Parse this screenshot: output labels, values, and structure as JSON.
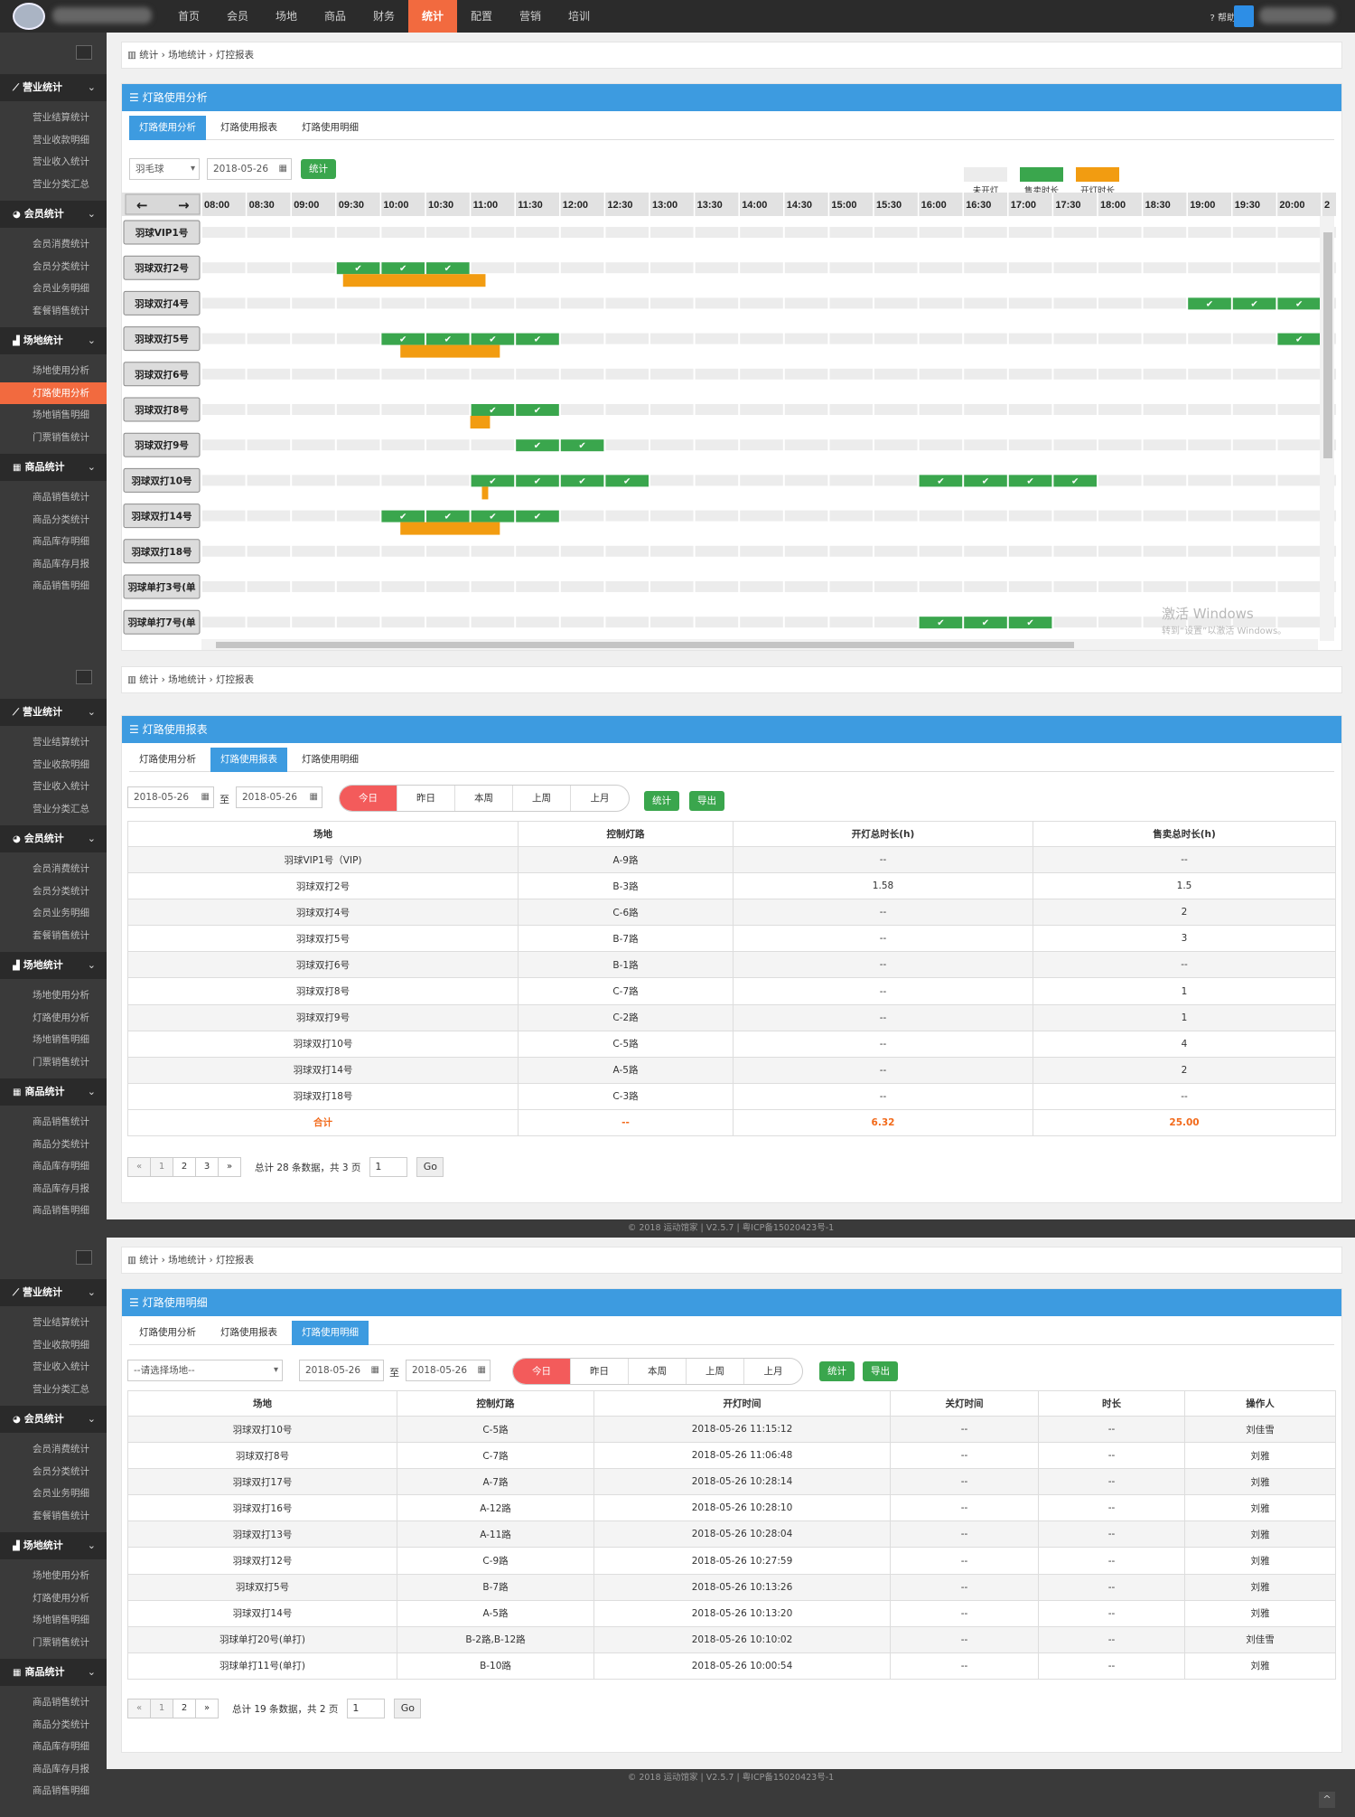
{
  "topnav": {
    "items": [
      "首页",
      "会员",
      "场地",
      "商品",
      "财务",
      "统计",
      "配置",
      "营销",
      "培训"
    ],
    "active": "统计",
    "help": "帮助"
  },
  "sidebar": {
    "groups": [
      {
        "title": "营业统计",
        "items": [
          "营业结算统计",
          "营业收款明细",
          "营业收入统计",
          "营业分类汇总"
        ]
      },
      {
        "title": "会员统计",
        "items": [
          "会员消费统计",
          "会员分类统计",
          "会员业务明细",
          "套餐销售统计"
        ]
      },
      {
        "title": "场地统计",
        "items": [
          "场地使用分析",
          "灯路使用分析",
          "场地销售明细",
          "门票销售统计"
        ]
      },
      {
        "title": "商品统计",
        "items": [
          "商品销售统计",
          "商品分类统计",
          "商品库存明细",
          "商品库存月报",
          "商品销售明细"
        ]
      }
    ]
  },
  "breadcrumb": {
    "root": "统计",
    "mid": "场地统计",
    "leaf": "灯控报表"
  },
  "tabs": [
    "灯路使用分析",
    "灯路使用报表",
    "灯路使用明细"
  ],
  "analysis": {
    "title": "灯路使用分析",
    "sport": "羽毛球",
    "date": "2018-05-26",
    "stat_button": "统计",
    "legend": [
      {
        "label": "未开灯",
        "color": "#ececec"
      },
      {
        "label": "售卖时长",
        "color": "#3aa64d"
      },
      {
        "label": "开灯时长",
        "color": "#f29c11"
      }
    ],
    "times": [
      "08:00",
      "08:30",
      "09:00",
      "09:30",
      "10:00",
      "10:30",
      "11:00",
      "11:30",
      "12:00",
      "12:30",
      "13:00",
      "13:30",
      "14:00",
      "14:30",
      "15:00",
      "15:30",
      "16:00",
      "16:30",
      "17:00",
      "17:30",
      "18:00",
      "18:30",
      "19:00",
      "19:30",
      "20:00",
      "2"
    ],
    "courts": [
      {
        "name": "羽球VIP1号",
        "sold": [],
        "lit": []
      },
      {
        "name": "羽球双打2号",
        "sold": [
          3,
          4,
          5
        ],
        "lit": [
          [
            9.58,
            11.17
          ]
        ]
      },
      {
        "name": "羽球双打4号",
        "sold": [
          22,
          23,
          24
        ],
        "lit": []
      },
      {
        "name": "羽球双打5号",
        "sold": [
          4,
          5,
          6,
          7,
          24
        ],
        "lit": [
          [
            10.22,
            11.33
          ]
        ]
      },
      {
        "name": "羽球双打6号",
        "sold": [],
        "lit": []
      },
      {
        "name": "羽球双打8号",
        "sold": [
          6,
          7
        ],
        "lit": [
          [
            11.0,
            11.22
          ]
        ]
      },
      {
        "name": "羽球双打9号",
        "sold": [
          7,
          8
        ],
        "lit": []
      },
      {
        "name": "羽球双打10号",
        "sold": [
          6,
          7,
          8,
          9,
          16,
          17,
          18,
          19
        ],
        "lit": [
          [
            11.13,
            11.2
          ]
        ]
      },
      {
        "name": "羽球双打14号",
        "sold": [
          4,
          5,
          6,
          7
        ],
        "lit": [
          [
            10.22,
            11.33
          ]
        ]
      },
      {
        "name": "羽球双打18号",
        "sold": [],
        "lit": []
      },
      {
        "name": "羽球单打3号(单",
        "sold": [],
        "lit": []
      },
      {
        "name": "羽球单打7号(单",
        "sold": [
          16,
          17,
          18
        ],
        "lit": []
      }
    ]
  },
  "report": {
    "title": "灯路使用报表",
    "date_from": "2018-05-26",
    "to": "至",
    "date_to": "2018-05-26",
    "ranges": [
      "今日",
      "昨日",
      "本周",
      "上周",
      "上月"
    ],
    "stat_button": "统计",
    "export_button": "导出",
    "columns": [
      "场地",
      "控制灯路",
      "开灯总时长(h)",
      "售卖总时长(h)"
    ],
    "rows": [
      [
        "羽球VIP1号（VIP)",
        "A-9路",
        "--",
        "--"
      ],
      [
        "羽球双打2号",
        "B-3路",
        "1.58",
        "1.5"
      ],
      [
        "羽球双打4号",
        "C-6路",
        "--",
        "2"
      ],
      [
        "羽球双打5号",
        "B-7路",
        "--",
        "3"
      ],
      [
        "羽球双打6号",
        "B-1路",
        "--",
        "--"
      ],
      [
        "羽球双打8号",
        "C-7路",
        "--",
        "1"
      ],
      [
        "羽球双打9号",
        "C-2路",
        "--",
        "1"
      ],
      [
        "羽球双打10号",
        "C-5路",
        "--",
        "4"
      ],
      [
        "羽球双打14号",
        "A-5路",
        "--",
        "2"
      ],
      [
        "羽球双打18号",
        "C-3路",
        "--",
        "--"
      ]
    ],
    "total": [
      "合计",
      "--",
      "6.32",
      "25.00"
    ],
    "pager": {
      "prev": "«",
      "pages": [
        "1",
        "2",
        "3"
      ],
      "next": "»",
      "summary": "总计 28 条数据，共 3 页",
      "input": "1",
      "go": "Go"
    }
  },
  "detail": {
    "title": "灯路使用明细",
    "court_placeholder": "--请选择场地--",
    "date_from": "2018-05-26",
    "to": "至",
    "date_to": "2018-05-26",
    "ranges": [
      "今日",
      "昨日",
      "本周",
      "上周",
      "上月"
    ],
    "stat_button": "统计",
    "export_button": "导出",
    "columns": [
      "场地",
      "控制灯路",
      "开灯时间",
      "关灯时间",
      "时长",
      "操作人"
    ],
    "rows": [
      [
        "羽球双打10号",
        "C-5路",
        "2018-05-26 11:15:12",
        "--",
        "--",
        "刘佳雪"
      ],
      [
        "羽球双打8号",
        "C-7路",
        "2018-05-26 11:06:48",
        "--",
        "--",
        "刘雅"
      ],
      [
        "羽球双打17号",
        "A-7路",
        "2018-05-26 10:28:14",
        "--",
        "--",
        "刘雅"
      ],
      [
        "羽球双打16号",
        "A-12路",
        "2018-05-26 10:28:10",
        "--",
        "--",
        "刘雅"
      ],
      [
        "羽球双打13号",
        "A-11路",
        "2018-05-26 10:28:04",
        "--",
        "--",
        "刘雅"
      ],
      [
        "羽球双打12号",
        "C-9路",
        "2018-05-26 10:27:59",
        "--",
        "--",
        "刘雅"
      ],
      [
        "羽球双打5号",
        "B-7路",
        "2018-05-26 10:13:26",
        "--",
        "--",
        "刘雅"
      ],
      [
        "羽球双打14号",
        "A-5路",
        "2018-05-26 10:13:20",
        "--",
        "--",
        "刘雅"
      ],
      [
        "羽球单打20号(单打)",
        "B-2路,B-12路",
        "2018-05-26 10:10:02",
        "--",
        "--",
        "刘佳雪"
      ],
      [
        "羽球单打11号(单打)",
        "B-10路",
        "2018-05-26 10:00:54",
        "--",
        "--",
        "刘雅"
      ]
    ],
    "pager": {
      "prev": "«",
      "pages": [
        "1",
        "2"
      ],
      "next": "»",
      "summary": "总计 19 条数据，共 2 页",
      "input": "1",
      "go": "Go"
    }
  },
  "footer": "© 2018 运动馆家 | V2.5.7 | 粤ICP备15020423号-1",
  "watermark": {
    "title": "激活 Windows",
    "sub": "转到“设置”以激活 Windows。"
  }
}
